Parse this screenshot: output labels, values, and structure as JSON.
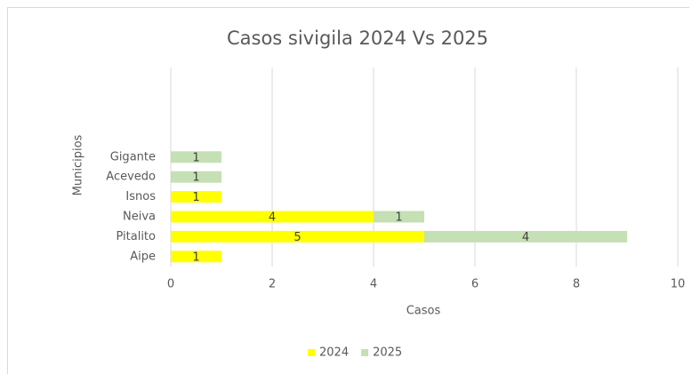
{
  "chart_data": {
    "type": "stacked_barh",
    "title": "Casos sivigila 2024 Vs 2025",
    "xlabel": "Casos",
    "ylabel": "Municipios",
    "categories": [
      "Aipe",
      "Pitalito",
      "Neiva",
      "Isnos",
      "Acevedo",
      "Gigante",
      null,
      null,
      null,
      null
    ],
    "series": [
      {
        "name": "2024",
        "color": "#ffff00",
        "values": [
          1,
          5,
          4,
          1,
          null,
          null,
          null,
          null,
          null,
          null
        ]
      },
      {
        "name": "2025",
        "color": "#c5e0b4",
        "values": [
          null,
          4,
          1,
          null,
          1,
          1,
          null,
          null,
          null,
          null
        ]
      }
    ],
    "xlim": [
      0,
      10
    ],
    "xticks": [
      0,
      2,
      4,
      6,
      8,
      10
    ],
    "grid": true,
    "legend": "bottom"
  }
}
